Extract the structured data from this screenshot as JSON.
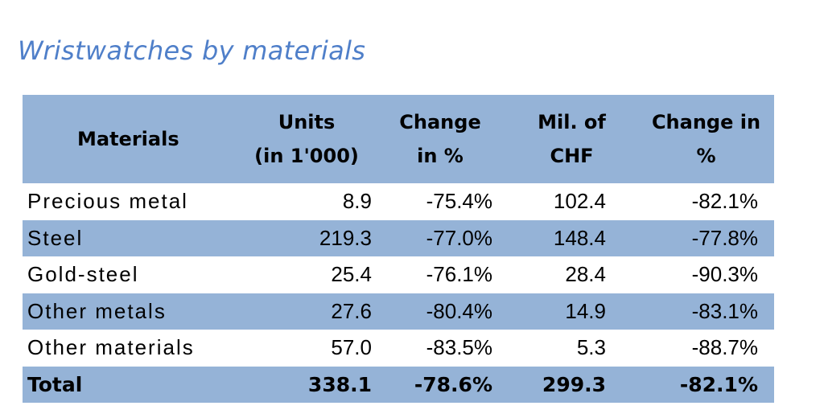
{
  "title": "Wristwatches by materials",
  "table": {
    "headers": [
      {
        "line1": "Materials",
        "line2": ""
      },
      {
        "line1": "Units",
        "line2": "(in 1'000)"
      },
      {
        "line1": "Change",
        "line2": "in %"
      },
      {
        "line1": "Mil. of",
        "line2": "CHF"
      },
      {
        "line1": "Change in",
        "line2": "%"
      }
    ],
    "rows": [
      [
        "Precious metal",
        "8.9",
        "-75.4%",
        "102.4",
        "-82.1%"
      ],
      [
        "Steel",
        "219.3",
        "-77.0%",
        "148.4",
        "-77.8%"
      ],
      [
        "Gold-steel",
        "25.4",
        "-76.1%",
        "28.4",
        "-90.3%"
      ],
      [
        "Other metals",
        "27.6",
        "-80.4%",
        "14.9",
        "-83.1%"
      ],
      [
        "Other materials",
        "57.0",
        "-83.5%",
        "5.3",
        "-88.7%"
      ]
    ],
    "total": [
      "Total",
      "338.1",
      "-78.6%",
      "299.3",
      "-82.1%"
    ]
  },
  "colors": {
    "title": "#4f7fc9",
    "header_fill": "#95b3d7",
    "band_fill": "#95b3d7"
  }
}
